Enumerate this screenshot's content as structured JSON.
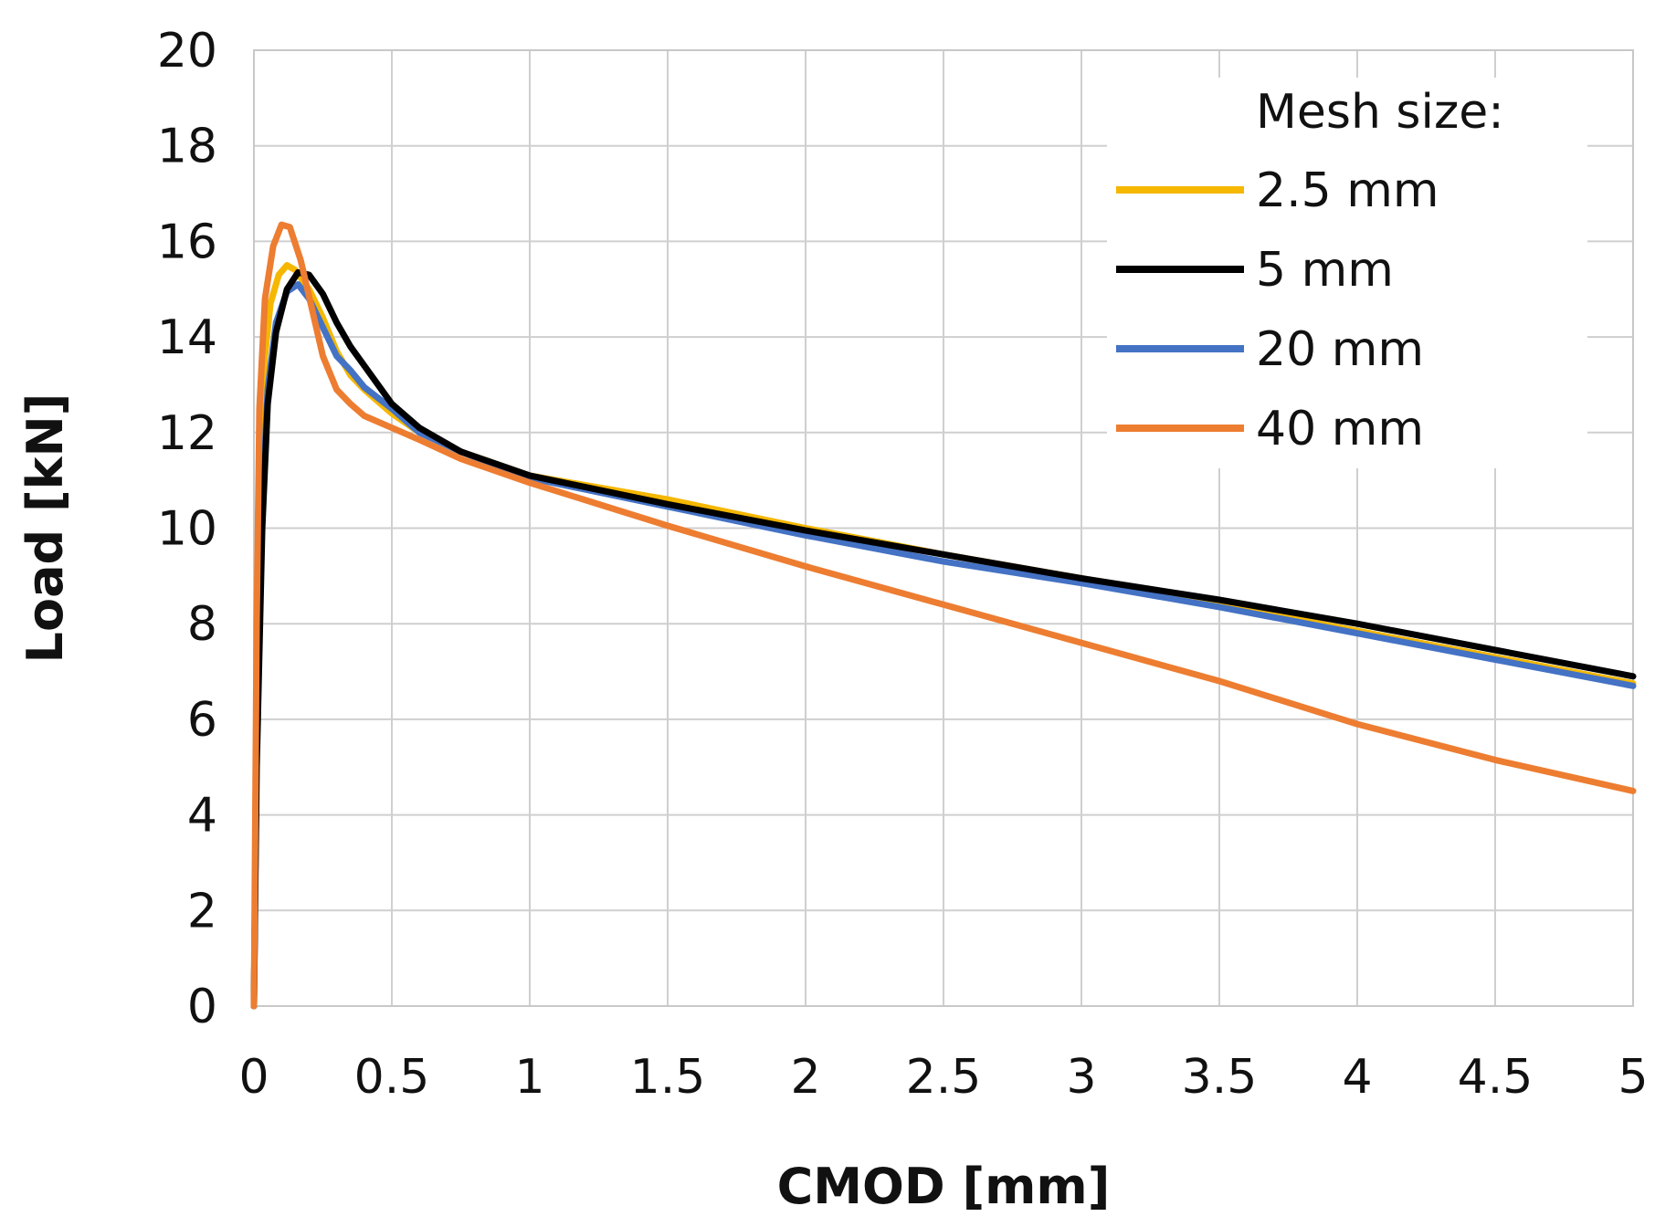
{
  "chart_data": {
    "type": "line",
    "title": "",
    "xlabel": "CMOD [mm]",
    "ylabel": "Load [kN]",
    "xlim": [
      0,
      5
    ],
    "ylim": [
      0,
      20
    ],
    "x_ticks": [
      0,
      0.5,
      1,
      1.5,
      2,
      2.5,
      3,
      3.5,
      4,
      4.5,
      5
    ],
    "x_tick_labels": [
      "0",
      "0.5",
      "1",
      "1.5",
      "2",
      "2.5",
      "3",
      "3.5",
      "4",
      "4.5",
      "5"
    ],
    "y_ticks": [
      0,
      2,
      4,
      6,
      8,
      10,
      12,
      14,
      16,
      18,
      20
    ],
    "y_tick_labels": [
      "0",
      "2",
      "4",
      "6",
      "8",
      "10",
      "12",
      "14",
      "16",
      "18",
      "20"
    ],
    "grid": true,
    "legend_title": "Mesh size:",
    "legend_position": "top-right",
    "series": [
      {
        "name": "2.5 mm",
        "color": "#F5B700",
        "points": [
          [
            0,
            0
          ],
          [
            0.01,
            6
          ],
          [
            0.02,
            11
          ],
          [
            0.04,
            13.6
          ],
          [
            0.06,
            14.7
          ],
          [
            0.09,
            15.3
          ],
          [
            0.12,
            15.5
          ],
          [
            0.15,
            15.4
          ],
          [
            0.2,
            15.0
          ],
          [
            0.25,
            14.4
          ],
          [
            0.3,
            13.7
          ],
          [
            0.35,
            13.2
          ],
          [
            0.4,
            12.9
          ],
          [
            0.5,
            12.4
          ],
          [
            0.6,
            12.0
          ],
          [
            0.75,
            11.6
          ],
          [
            1,
            11.1
          ],
          [
            1.5,
            10.6
          ],
          [
            2,
            10.0
          ],
          [
            2.5,
            9.45
          ],
          [
            3,
            8.95
          ],
          [
            3.5,
            8.4
          ],
          [
            4,
            7.85
          ],
          [
            4.5,
            7.3
          ],
          [
            5,
            6.75
          ]
        ]
      },
      {
        "name": "5 mm",
        "color": "#000000",
        "points": [
          [
            0,
            0
          ],
          [
            0.01,
            5
          ],
          [
            0.03,
            10
          ],
          [
            0.05,
            12.6
          ],
          [
            0.08,
            14.1
          ],
          [
            0.12,
            15.0
          ],
          [
            0.16,
            15.35
          ],
          [
            0.2,
            15.3
          ],
          [
            0.25,
            14.9
          ],
          [
            0.3,
            14.3
          ],
          [
            0.35,
            13.8
          ],
          [
            0.4,
            13.4
          ],
          [
            0.5,
            12.6
          ],
          [
            0.6,
            12.1
          ],
          [
            0.75,
            11.6
          ],
          [
            1,
            11.1
          ],
          [
            1.5,
            10.5
          ],
          [
            2,
            9.95
          ],
          [
            2.5,
            9.45
          ],
          [
            3,
            8.95
          ],
          [
            3.5,
            8.5
          ],
          [
            4,
            8.0
          ],
          [
            4.5,
            7.45
          ],
          [
            5,
            6.9
          ]
        ]
      },
      {
        "name": "20 mm",
        "color": "#4472C4",
        "points": [
          [
            0,
            0
          ],
          [
            0.01,
            5.5
          ],
          [
            0.03,
            10.5
          ],
          [
            0.05,
            12.9
          ],
          [
            0.08,
            14.3
          ],
          [
            0.12,
            14.95
          ],
          [
            0.16,
            15.1
          ],
          [
            0.2,
            14.8
          ],
          [
            0.25,
            14.2
          ],
          [
            0.3,
            13.6
          ],
          [
            0.35,
            13.3
          ],
          [
            0.4,
            12.95
          ],
          [
            0.5,
            12.5
          ],
          [
            0.6,
            12.0
          ],
          [
            0.75,
            11.6
          ],
          [
            1,
            11.05
          ],
          [
            1.5,
            10.45
          ],
          [
            2,
            9.85
          ],
          [
            2.5,
            9.3
          ],
          [
            3,
            8.85
          ],
          [
            3.5,
            8.35
          ],
          [
            4,
            7.8
          ],
          [
            4.5,
            7.25
          ],
          [
            5,
            6.7
          ]
        ]
      },
      {
        "name": "40 mm",
        "color": "#ED7D31",
        "points": [
          [
            0,
            0
          ],
          [
            0.01,
            8
          ],
          [
            0.02,
            12.5
          ],
          [
            0.04,
            14.8
          ],
          [
            0.07,
            15.9
          ],
          [
            0.1,
            16.35
          ],
          [
            0.13,
            16.3
          ],
          [
            0.17,
            15.6
          ],
          [
            0.21,
            14.6
          ],
          [
            0.25,
            13.6
          ],
          [
            0.3,
            12.9
          ],
          [
            0.35,
            12.6
          ],
          [
            0.4,
            12.35
          ],
          [
            0.5,
            12.1
          ],
          [
            0.6,
            11.85
          ],
          [
            0.75,
            11.45
          ],
          [
            1,
            10.95
          ],
          [
            1.5,
            10.05
          ],
          [
            2,
            9.2
          ],
          [
            2.5,
            8.4
          ],
          [
            3,
            7.6
          ],
          [
            3.5,
            6.8
          ],
          [
            4,
            5.9
          ],
          [
            4.5,
            5.15
          ],
          [
            5,
            4.5
          ]
        ]
      }
    ]
  }
}
